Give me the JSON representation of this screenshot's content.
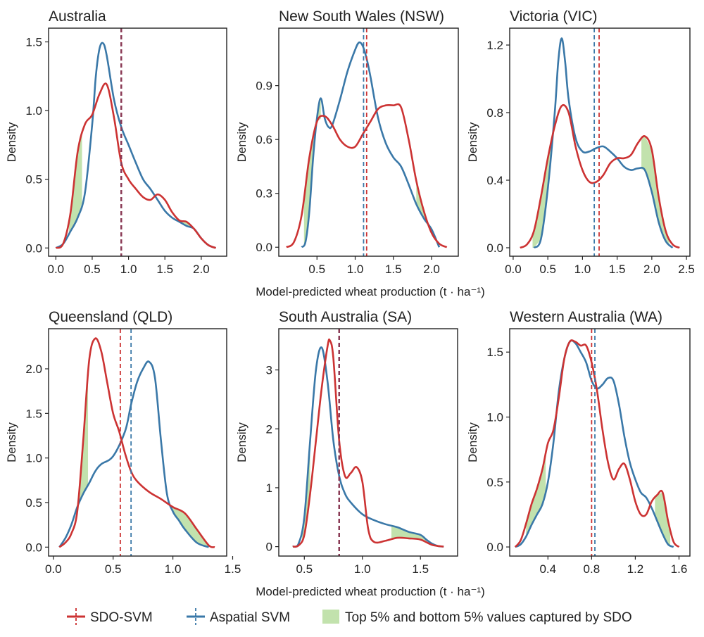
{
  "shared_xlabel": "Model-predicted wheat production (t · ha⁻¹)",
  "ylabel": "Density",
  "colors": {
    "sdo": "#cc3333",
    "asvm": "#3a78a8",
    "fill": "#c2e2ad"
  },
  "legend": [
    {
      "key": "sdo",
      "label": "SDO-SVM"
    },
    {
      "key": "asvm",
      "label": "Aspatial SVM"
    },
    {
      "key": "fill",
      "label": "Top 5% and bottom 5% values captured by SDO"
    }
  ],
  "chart_data": [
    {
      "type": "area",
      "title": "Australia",
      "xlim": [
        -0.1,
        2.35
      ],
      "ylim": [
        -0.06,
        1.6
      ],
      "xticks": [
        0.0,
        0.5,
        1.0,
        1.5,
        2.0
      ],
      "xtick_labels": [
        "0.0",
        "0.5",
        "1.0",
        "1.5",
        "2.0"
      ],
      "yticks": [
        0.0,
        0.5,
        1.0,
        1.5
      ],
      "ytick_labels": [
        "0.0",
        "0.5",
        "1.0",
        "1.5"
      ],
      "means": {
        "sdo": 0.9,
        "asvm": 0.9
      },
      "series": [
        {
          "name": "SDO-SVM",
          "key": "sdo",
          "x": [
            0.0,
            0.1,
            0.2,
            0.3,
            0.4,
            0.5,
            0.6,
            0.7,
            0.8,
            0.9,
            1.0,
            1.1,
            1.2,
            1.3,
            1.4,
            1.5,
            1.6,
            1.7,
            1.8,
            1.9,
            2.0,
            2.1,
            2.2
          ],
          "y": [
            0.0,
            0.03,
            0.25,
            0.7,
            0.9,
            0.97,
            1.12,
            1.19,
            0.95,
            0.62,
            0.5,
            0.43,
            0.37,
            0.35,
            0.39,
            0.35,
            0.26,
            0.2,
            0.19,
            0.14,
            0.07,
            0.02,
            0.0
          ]
        },
        {
          "name": "Aspatial SVM",
          "key": "asvm",
          "x": [
            0.0,
            0.1,
            0.2,
            0.3,
            0.4,
            0.5,
            0.55,
            0.6,
            0.65,
            0.7,
            0.8,
            0.9,
            1.0,
            1.1,
            1.2,
            1.3,
            1.4,
            1.5,
            1.6,
            1.7,
            1.8,
            1.9,
            2.0,
            2.1,
            2.2
          ],
          "y": [
            0.0,
            0.03,
            0.12,
            0.22,
            0.4,
            0.9,
            1.25,
            1.45,
            1.49,
            1.4,
            1.08,
            0.88,
            0.75,
            0.62,
            0.5,
            0.43,
            0.35,
            0.27,
            0.22,
            0.19,
            0.16,
            0.14,
            0.07,
            0.02,
            0.0
          ]
        }
      ],
      "shaded_x": [
        [
          0.18,
          0.36
        ],
        [
          1.72,
          1.92
        ]
      ]
    },
    {
      "type": "area",
      "title": "New South Wales (NSW)",
      "xlim": [
        0.0,
        2.35
      ],
      "ylim": [
        -0.05,
        1.22
      ],
      "xticks": [
        0.5,
        1.0,
        1.5,
        2.0
      ],
      "xtick_labels": [
        "0.5",
        "1.0",
        "1.5",
        "2.0"
      ],
      "yticks": [
        0.0,
        0.3,
        0.6,
        0.9
      ],
      "ytick_labels": [
        "0.0",
        "0.3",
        "0.6",
        "0.9"
      ],
      "means": {
        "sdo": 1.15,
        "asvm": 1.11
      },
      "series": [
        {
          "name": "SDO-SVM",
          "key": "sdo",
          "x": [
            0.1,
            0.2,
            0.3,
            0.4,
            0.5,
            0.6,
            0.7,
            0.8,
            0.9,
            1.0,
            1.1,
            1.2,
            1.3,
            1.4,
            1.5,
            1.6,
            1.7,
            1.8,
            1.9,
            2.0,
            2.1,
            2.2
          ],
          "y": [
            0.0,
            0.03,
            0.18,
            0.5,
            0.7,
            0.73,
            0.68,
            0.6,
            0.56,
            0.56,
            0.63,
            0.7,
            0.77,
            0.79,
            0.79,
            0.78,
            0.6,
            0.37,
            0.2,
            0.08,
            0.02,
            0.0
          ]
        },
        {
          "name": "Aspatial SVM",
          "key": "asvm",
          "x": [
            0.3,
            0.35,
            0.4,
            0.45,
            0.5,
            0.55,
            0.6,
            0.65,
            0.7,
            0.8,
            0.9,
            1.0,
            1.05,
            1.1,
            1.15,
            1.2,
            1.3,
            1.4,
            1.5,
            1.6,
            1.7,
            1.8,
            1.9,
            2.0,
            2.1
          ],
          "y": [
            0.0,
            0.03,
            0.2,
            0.5,
            0.72,
            0.83,
            0.72,
            0.67,
            0.68,
            0.82,
            0.98,
            1.1,
            1.14,
            1.12,
            1.05,
            0.95,
            0.72,
            0.58,
            0.5,
            0.45,
            0.35,
            0.24,
            0.16,
            0.1,
            0.0
          ]
        }
      ],
      "shaded_x": [
        [
          0.33,
          0.55
        ],
        [
          1.8,
          2.05
        ]
      ]
    },
    {
      "type": "area",
      "title": "Victoria (VIC)",
      "xlim": [
        -0.05,
        2.55
      ],
      "ylim": [
        -0.05,
        1.3
      ],
      "xticks": [
        0.0,
        0.5,
        1.0,
        1.5,
        2.0,
        2.5
      ],
      "xtick_labels": [
        "0.0",
        "0.5",
        "1.0",
        "1.5",
        "2.0",
        "2.5"
      ],
      "yticks": [
        0.0,
        0.4,
        0.8,
        1.2
      ],
      "ytick_labels": [
        "0.0",
        "0.4",
        "0.8",
        "1.2"
      ],
      "means": {
        "sdo": 1.24,
        "asvm": 1.17
      },
      "series": [
        {
          "name": "SDO-SVM",
          "key": "sdo",
          "x": [
            0.1,
            0.2,
            0.3,
            0.4,
            0.5,
            0.6,
            0.7,
            0.8,
            0.9,
            1.0,
            1.1,
            1.2,
            1.3,
            1.4,
            1.5,
            1.6,
            1.7,
            1.8,
            1.9,
            2.0,
            2.1,
            2.2,
            2.3,
            2.4
          ],
          "y": [
            0.0,
            0.02,
            0.1,
            0.3,
            0.53,
            0.72,
            0.84,
            0.8,
            0.6,
            0.46,
            0.39,
            0.39,
            0.43,
            0.5,
            0.53,
            0.53,
            0.55,
            0.62,
            0.66,
            0.58,
            0.3,
            0.1,
            0.02,
            0.0
          ]
        },
        {
          "name": "Aspatial SVM",
          "key": "asvm",
          "x": [
            0.3,
            0.4,
            0.5,
            0.6,
            0.65,
            0.7,
            0.75,
            0.8,
            0.9,
            1.0,
            1.1,
            1.2,
            1.3,
            1.4,
            1.5,
            1.6,
            1.7,
            1.8,
            1.9,
            2.0,
            2.1,
            2.2,
            2.3
          ],
          "y": [
            0.0,
            0.05,
            0.35,
            0.8,
            1.1,
            1.24,
            1.1,
            0.88,
            0.65,
            0.57,
            0.57,
            0.59,
            0.6,
            0.57,
            0.53,
            0.48,
            0.46,
            0.47,
            0.46,
            0.33,
            0.15,
            0.04,
            0.0
          ]
        }
      ],
      "shaded_x": [
        [
          0.28,
          0.55
        ],
        [
          1.85,
          2.25
        ]
      ]
    },
    {
      "type": "area",
      "title": "Queensland (QLD)",
      "xlim": [
        -0.04,
        1.45
      ],
      "ylim": [
        -0.1,
        2.45
      ],
      "xticks": [
        0.0,
        0.5,
        1.0,
        1.5
      ],
      "xtick_labels": [
        "0.0",
        "0.5",
        "1.0",
        "1.5"
      ],
      "yticks": [
        0.0,
        0.5,
        1.0,
        1.5,
        2.0
      ],
      "ytick_labels": [
        "0.0",
        "0.5",
        "1.0",
        "1.5",
        "2.0"
      ],
      "means": {
        "sdo": 0.56,
        "asvm": 0.65
      },
      "series": [
        {
          "name": "SDO-SVM",
          "key": "sdo",
          "x": [
            0.05,
            0.1,
            0.15,
            0.2,
            0.25,
            0.3,
            0.35,
            0.4,
            0.45,
            0.5,
            0.55,
            0.6,
            0.65,
            0.7,
            0.8,
            0.9,
            1.0,
            1.1,
            1.2,
            1.3,
            1.35
          ],
          "y": [
            0.0,
            0.05,
            0.15,
            0.4,
            1.2,
            2.1,
            2.34,
            2.2,
            1.85,
            1.5,
            1.3,
            1.05,
            0.85,
            0.74,
            0.62,
            0.54,
            0.45,
            0.38,
            0.2,
            0.02,
            0.0
          ]
        },
        {
          "name": "Aspatial SVM",
          "key": "asvm",
          "x": [
            0.05,
            0.1,
            0.15,
            0.2,
            0.25,
            0.3,
            0.35,
            0.4,
            0.5,
            0.6,
            0.65,
            0.7,
            0.75,
            0.8,
            0.85,
            0.9,
            0.95,
            1.0,
            1.05,
            1.1,
            1.2,
            1.3
          ],
          "y": [
            0.0,
            0.1,
            0.25,
            0.45,
            0.6,
            0.72,
            0.85,
            0.93,
            1.02,
            1.3,
            1.6,
            1.85,
            2.0,
            2.08,
            1.9,
            1.2,
            0.6,
            0.4,
            0.3,
            0.2,
            0.05,
            0.0
          ]
        }
      ],
      "shaded_x": [
        [
          0.2,
          0.29
        ],
        [
          0.98,
          1.3
        ]
      ]
    },
    {
      "type": "area",
      "title": "South Australia (SA)",
      "xlim": [
        0.28,
        1.82
      ],
      "ylim": [
        -0.16,
        3.7
      ],
      "xticks": [
        0.5,
        1.0,
        1.5
      ],
      "xtick_labels": [
        "0.5",
        "1.0",
        "1.5"
      ],
      "yticks": [
        0,
        1,
        2,
        3
      ],
      "ytick_labels": [
        "0",
        "1",
        "2",
        "3"
      ],
      "means": {
        "sdo": 0.8,
        "asvm": 0.8
      },
      "series": [
        {
          "name": "SDO-SVM",
          "key": "sdo",
          "x": [
            0.4,
            0.45,
            0.5,
            0.55,
            0.6,
            0.65,
            0.7,
            0.72,
            0.75,
            0.8,
            0.85,
            0.9,
            0.95,
            1.0,
            1.05,
            1.1,
            1.2,
            1.3,
            1.4,
            1.5,
            1.6,
            1.7
          ],
          "y": [
            0.0,
            0.02,
            0.2,
            0.9,
            1.8,
            2.7,
            3.4,
            3.5,
            3.2,
            1.8,
            1.2,
            1.25,
            1.35,
            1.1,
            0.3,
            0.08,
            0.1,
            0.15,
            0.14,
            0.12,
            0.03,
            0.0
          ]
        },
        {
          "name": "Aspatial SVM",
          "key": "asvm",
          "x": [
            0.4,
            0.45,
            0.5,
            0.55,
            0.6,
            0.65,
            0.7,
            0.75,
            0.8,
            0.85,
            0.9,
            1.0,
            1.1,
            1.2,
            1.3,
            1.4,
            1.5,
            1.55,
            1.6,
            1.65,
            1.7
          ],
          "y": [
            0.0,
            0.05,
            0.5,
            1.8,
            3.0,
            3.38,
            2.8,
            1.8,
            1.2,
            0.9,
            0.75,
            0.55,
            0.45,
            0.38,
            0.33,
            0.25,
            0.2,
            0.12,
            0.05,
            0.01,
            0.0
          ]
        }
      ],
      "shaded_x": [
        [
          0.48,
          0.55
        ],
        [
          1.25,
          1.55
        ]
      ]
    },
    {
      "type": "area",
      "title": "Western Australia (WA)",
      "xlim": [
        0.05,
        1.7
      ],
      "ylim": [
        -0.07,
        1.68
      ],
      "xticks": [
        0.4,
        0.8,
        1.2,
        1.6
      ],
      "xtick_labels": [
        "0.4",
        "0.8",
        "1.2",
        "1.6"
      ],
      "yticks": [
        0.0,
        0.5,
        1.0,
        1.5
      ],
      "ytick_labels": [
        "0.0",
        "0.5",
        "1.0",
        "1.5"
      ],
      "means": {
        "sdo": 0.8,
        "asvm": 0.83
      },
      "series": [
        {
          "name": "SDO-SVM",
          "key": "sdo",
          "x": [
            0.1,
            0.15,
            0.2,
            0.25,
            0.3,
            0.35,
            0.4,
            0.45,
            0.5,
            0.55,
            0.6,
            0.65,
            0.7,
            0.75,
            0.8,
            0.85,
            0.9,
            0.95,
            1.0,
            1.05,
            1.1,
            1.15,
            1.2,
            1.25,
            1.3,
            1.35,
            1.4,
            1.45,
            1.5,
            1.55,
            1.6
          ],
          "y": [
            0.0,
            0.05,
            0.18,
            0.33,
            0.45,
            0.6,
            0.8,
            0.9,
            1.15,
            1.45,
            1.58,
            1.58,
            1.55,
            1.55,
            1.42,
            1.2,
            0.9,
            0.65,
            0.52,
            0.6,
            0.64,
            0.52,
            0.35,
            0.25,
            0.25,
            0.35,
            0.4,
            0.42,
            0.2,
            0.04,
            0.0
          ]
        },
        {
          "name": "Aspatial SVM",
          "key": "asvm",
          "x": [
            0.1,
            0.15,
            0.2,
            0.25,
            0.3,
            0.35,
            0.4,
            0.45,
            0.5,
            0.55,
            0.6,
            0.65,
            0.7,
            0.75,
            0.8,
            0.85,
            0.9,
            0.95,
            1.0,
            1.05,
            1.1,
            1.15,
            1.2,
            1.25,
            1.3,
            1.35,
            1.4,
            1.45,
            1.5,
            1.55
          ],
          "y": [
            0.0,
            0.02,
            0.08,
            0.17,
            0.25,
            0.33,
            0.5,
            0.8,
            1.2,
            1.45,
            1.58,
            1.57,
            1.5,
            1.42,
            1.28,
            1.22,
            1.25,
            1.3,
            1.28,
            1.1,
            0.85,
            0.65,
            0.52,
            0.42,
            0.38,
            0.3,
            0.2,
            0.1,
            0.02,
            0.0
          ]
        }
      ],
      "shaded_x": [
        [
          0.2,
          0.38
        ],
        [
          1.38,
          1.52
        ]
      ]
    }
  ]
}
